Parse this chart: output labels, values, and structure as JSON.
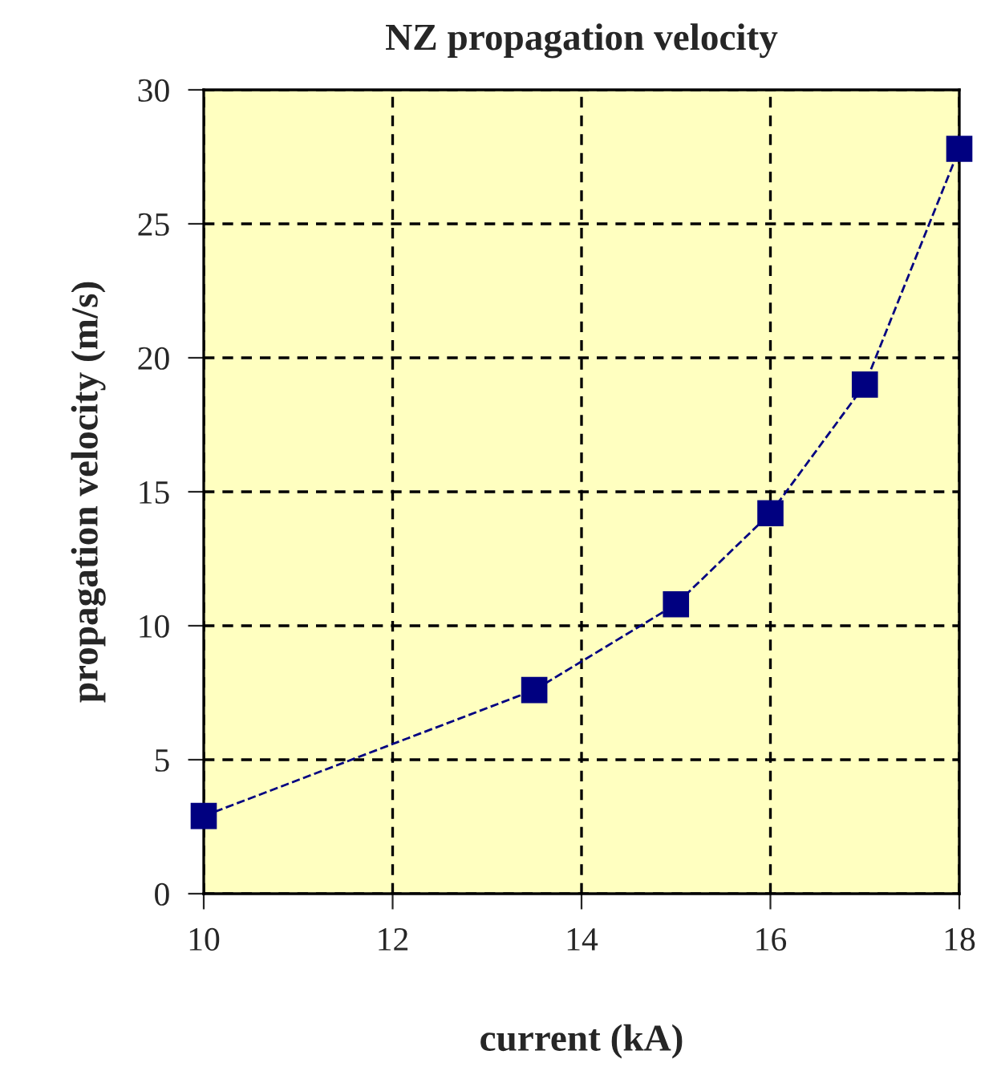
{
  "chart_data": {
    "type": "line",
    "title": "NZ propagation velocity",
    "xlabel": "current (kA)",
    "ylabel": "propagation velocity (m/s)",
    "x": [
      10,
      13.5,
      15,
      16,
      17,
      18
    ],
    "series": [
      {
        "color": "#000080",
        "values": [
          2.9,
          7.6,
          10.8,
          14.2,
          19.0,
          27.8
        ]
      }
    ],
    "xlim": [
      10,
      18
    ],
    "xticks": [
      10,
      12,
      14,
      16,
      18
    ],
    "ylim": [
      0,
      30
    ],
    "yticks": [
      0,
      5,
      10,
      15,
      20,
      25,
      30
    ],
    "grid": true,
    "marker": "square",
    "line_style": "dashed"
  }
}
